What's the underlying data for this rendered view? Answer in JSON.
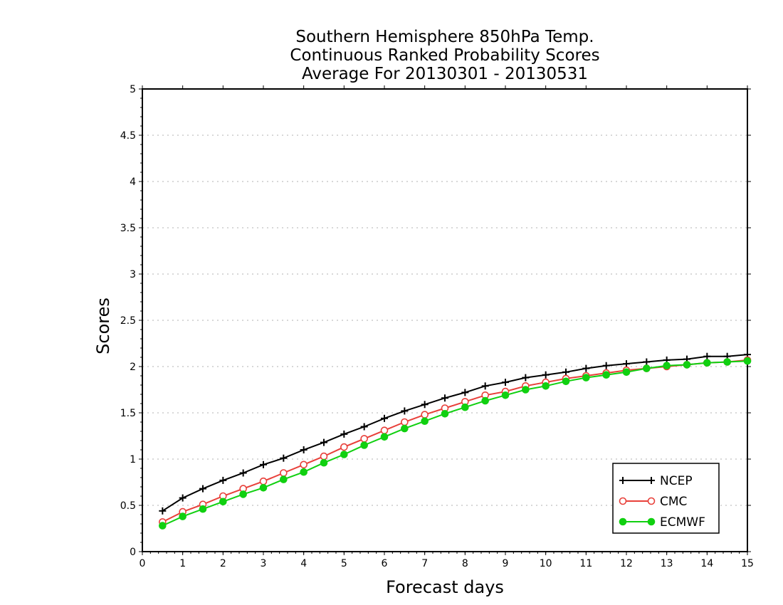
{
  "chart_data": {
    "type": "line",
    "title_lines": [
      "Southern Hemisphere 850hPa Temp.",
      "Continuous Ranked Probability Scores",
      "Average For 20130301 - 20130531"
    ],
    "xlabel": "Forecast days",
    "ylabel": "Scores",
    "xlim": [
      0,
      15
    ],
    "ylim": [
      0,
      5
    ],
    "x_ticks": [
      0,
      1,
      2,
      3,
      4,
      5,
      6,
      7,
      8,
      9,
      10,
      11,
      12,
      13,
      14,
      15
    ],
    "y_ticks": [
      0,
      0.5,
      1,
      1.5,
      2,
      2.5,
      3,
      3.5,
      4,
      4.5,
      5
    ],
    "y_tick_labels": [
      "0",
      "0.5",
      "1",
      "1.5",
      "2",
      "2.5",
      "3",
      "3.5",
      "4",
      "4.5",
      "5"
    ],
    "grid": "horizontal dotted",
    "legend_position": "bottom-right",
    "x": [
      0.5,
      1,
      1.5,
      2,
      2.5,
      3,
      3.5,
      4,
      4.5,
      5,
      5.5,
      6,
      6.5,
      7,
      7.5,
      8,
      8.5,
      9,
      9.5,
      10,
      10.5,
      11,
      11.5,
      12,
      12.5,
      13,
      13.5,
      14,
      14.5,
      15
    ],
    "series": [
      {
        "name": "NCEP",
        "color": "#000000",
        "marker": "plus",
        "values": [
          0.44,
          0.58,
          0.68,
          0.77,
          0.85,
          0.94,
          1.01,
          1.1,
          1.18,
          1.27,
          1.35,
          1.44,
          1.52,
          1.59,
          1.66,
          1.72,
          1.79,
          1.83,
          1.88,
          1.91,
          1.94,
          1.98,
          2.01,
          2.03,
          2.05,
          2.07,
          2.08,
          2.11,
          2.11,
          2.13
        ]
      },
      {
        "name": "CMC",
        "color": "#e8403a",
        "marker": "open-circle",
        "values": [
          0.32,
          0.43,
          0.51,
          0.6,
          0.68,
          0.76,
          0.85,
          0.94,
          1.03,
          1.13,
          1.22,
          1.31,
          1.4,
          1.48,
          1.55,
          1.62,
          1.69,
          1.73,
          1.79,
          1.83,
          1.87,
          1.9,
          1.93,
          1.96,
          1.98,
          2.0,
          2.02,
          2.04,
          2.05,
          2.07
        ]
      },
      {
        "name": "ECMWF",
        "color": "#10d010",
        "marker": "filled-circle",
        "values": [
          0.28,
          0.38,
          0.46,
          0.54,
          0.62,
          0.69,
          0.78,
          0.86,
          0.96,
          1.05,
          1.15,
          1.24,
          1.33,
          1.41,
          1.49,
          1.56,
          1.63,
          1.69,
          1.75,
          1.79,
          1.84,
          1.88,
          1.91,
          1.94,
          1.98,
          2.01,
          2.02,
          2.04,
          2.05,
          2.06
        ]
      }
    ]
  }
}
